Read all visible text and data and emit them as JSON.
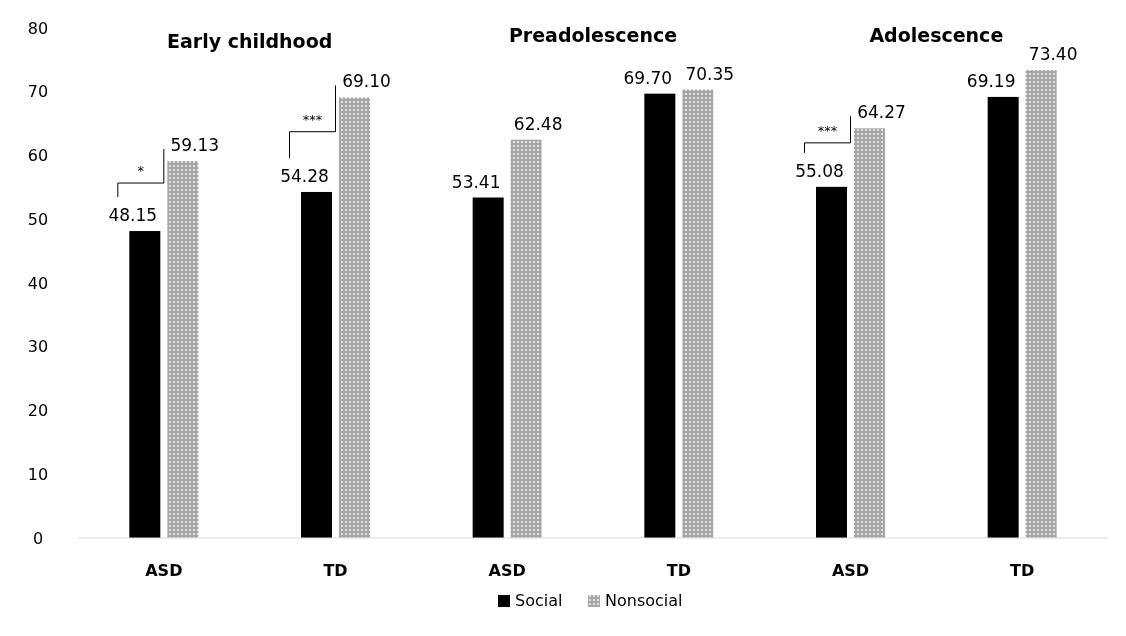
{
  "chart_data": {
    "type": "bar",
    "categories": [
      "ASD",
      "TD",
      "ASD",
      "TD",
      "ASD",
      "TD"
    ],
    "series": [
      {
        "name": "Social",
        "color": "#000000",
        "values": [
          48.15,
          54.28,
          53.41,
          69.7,
          55.08,
          69.19
        ],
        "value_labels": [
          "48.15",
          "54.28",
          "53.41",
          "69.70",
          "55.08",
          "69.19"
        ]
      },
      {
        "name": "Nonsocial",
        "color": "#a6a6a6",
        "values": [
          59.13,
          69.1,
          62.48,
          70.35,
          64.27,
          73.4
        ],
        "value_labels": [
          "59.13",
          "69.10",
          "62.48",
          "70.35",
          "64.27",
          "73.40"
        ]
      }
    ],
    "ylim": [
      0,
      80
    ],
    "yticks": [
      0,
      10,
      20,
      30,
      40,
      50,
      60,
      70,
      80
    ],
    "grid": false,
    "legend": "bottom",
    "annotations": [
      "Early childhood",
      "Preadolescence",
      "Adolescence",
      "*",
      "***",
      "***"
    ]
  }
}
